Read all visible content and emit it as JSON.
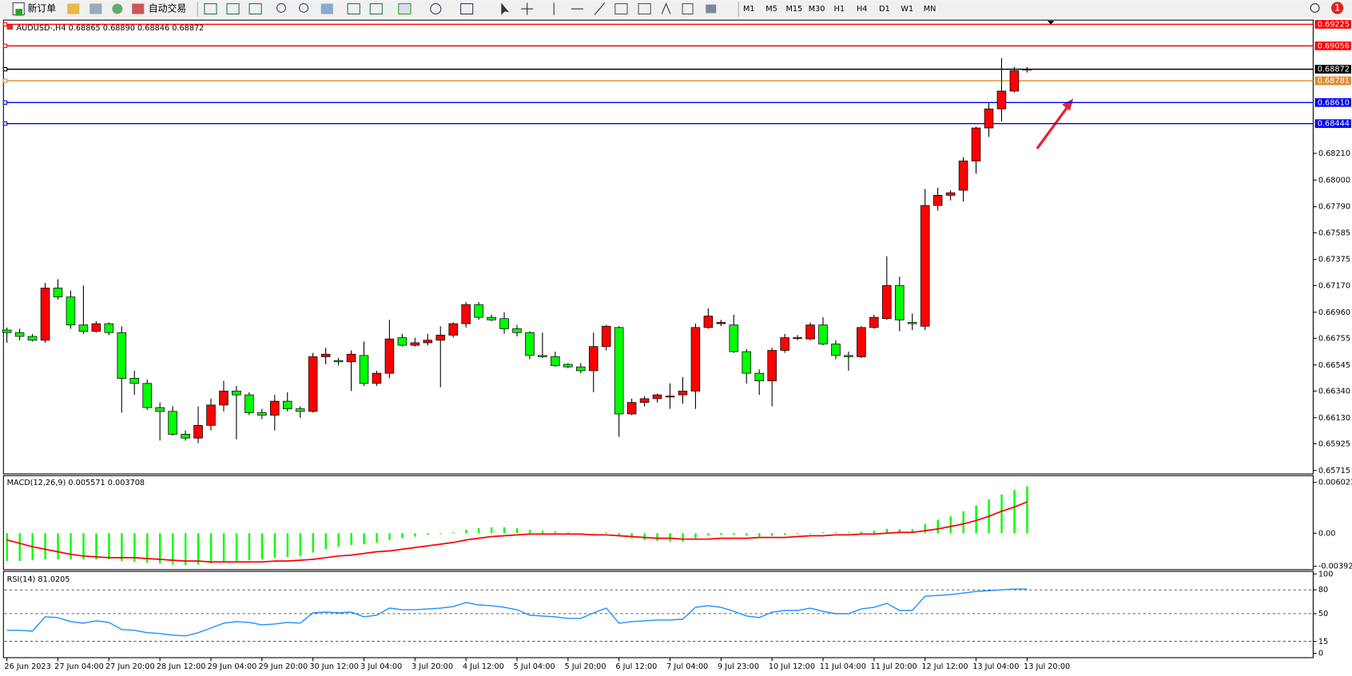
{
  "toolbar": {
    "new_order": "新订单",
    "auto_trading": "自动交易",
    "timeframes": [
      "M1",
      "M5",
      "M15",
      "M30",
      "H1",
      "H4",
      "D1",
      "W1",
      "MN"
    ],
    "alerts": "1"
  },
  "chart_data": [
    {
      "type": "candlestick",
      "title": "AUDUSD-,H4  0.68865 0.68890 0.68846 0.68872",
      "categories": [
        "26 Jun 2023",
        null,
        null,
        null,
        "27 Jun 04:00",
        null,
        null,
        null,
        "27 Jun 20:00",
        null,
        null,
        null,
        "28 Jun 12:00",
        null,
        null,
        null,
        "29 Jun 04:00",
        null,
        null,
        null,
        "29 Jun 20:00",
        null,
        null,
        null,
        "30 Jun 12:00",
        null,
        null,
        null,
        "3 Jul 04:00",
        null,
        null,
        null,
        "3 Jul 20:00",
        null,
        null,
        null,
        "4 Jul 12:00",
        null,
        null,
        null,
        "5 Jul 04:00",
        null,
        null,
        null,
        "5 Jul 20:00",
        null,
        null,
        null,
        "6 Jul 12:00",
        null,
        null,
        null,
        "7 Jul 04:00",
        null,
        null,
        null,
        "9 Jul 23:00",
        null,
        null,
        null,
        "10 Jul 12:00",
        null,
        null,
        null,
        "11 Jul 04:00",
        null,
        null,
        null,
        "11 Jul 20:00",
        null,
        null,
        null,
        "12 Jul 12:00",
        null,
        null,
        null,
        "13 Jul 04:00",
        null,
        null,
        null,
        "13 Jul 20:00"
      ],
      "open": [
        0.6682,
        0.668,
        0.6677,
        0.6674,
        0.6715,
        0.6708,
        0.6686,
        0.6681,
        0.6687,
        0.668,
        0.6644,
        0.664,
        0.6621,
        0.6618,
        0.66,
        0.6597,
        0.6607,
        0.6623,
        0.6634,
        0.6631,
        0.6617,
        0.6615,
        0.6626,
        0.662,
        0.6618,
        0.6661,
        0.6658,
        0.6657,
        0.6662,
        0.664,
        0.6648,
        0.6676,
        0.667,
        0.6672,
        0.6674,
        0.6678,
        0.6687,
        0.6702,
        0.6692,
        0.6691,
        0.6683,
        0.668,
        0.6662,
        0.6661,
        0.6655,
        0.6653,
        0.665,
        0.6669,
        0.6684,
        0.6616,
        0.6625,
        0.6628,
        0.663,
        0.6631,
        0.6634,
        0.6684,
        0.6687,
        0.6686,
        0.6665,
        0.6648,
        0.6642,
        0.6666,
        0.6676,
        0.6675,
        0.6686,
        0.6671,
        0.6662,
        0.6661,
        0.6684,
        0.6691,
        0.6717,
        0.6688,
        0.6685,
        0.678,
        0.6788,
        0.6792,
        0.6815,
        0.6841,
        0.6856,
        0.687,
        0.68865
      ],
      "high": [
        0.6684,
        0.6683,
        0.6679,
        0.6719,
        0.6722,
        0.6713,
        0.6717,
        0.6689,
        0.6688,
        0.6685,
        0.665,
        0.6643,
        0.6625,
        0.6622,
        0.6603,
        0.6622,
        0.6628,
        0.6642,
        0.6638,
        0.6633,
        0.662,
        0.6631,
        0.6633,
        0.6622,
        0.6664,
        0.6668,
        0.666,
        0.6666,
        0.6673,
        0.665,
        0.669,
        0.6679,
        0.6676,
        0.6679,
        0.6685,
        0.6688,
        0.6704,
        0.6704,
        0.6694,
        0.6696,
        0.6686,
        0.6681,
        0.668,
        0.6665,
        0.6656,
        0.6656,
        0.668,
        0.6686,
        0.6685,
        0.6628,
        0.663,
        0.6632,
        0.664,
        0.6645,
        0.6687,
        0.6699,
        0.669,
        0.6694,
        0.6667,
        0.6651,
        0.6668,
        0.6679,
        0.6678,
        0.6688,
        0.6692,
        0.6674,
        0.6665,
        0.6685,
        0.6694,
        0.674,
        0.6724,
        0.6695,
        0.6793,
        0.6794,
        0.6792,
        0.6818,
        0.6842,
        0.6861,
        0.6896,
        0.6889,
        0.6889
      ],
      "low": [
        0.6672,
        0.6674,
        0.6673,
        0.6672,
        0.6706,
        0.6683,
        0.6679,
        0.668,
        0.6678,
        0.6617,
        0.6631,
        0.6619,
        0.6595,
        0.6599,
        0.6595,
        0.6593,
        0.6603,
        0.6618,
        0.6596,
        0.6615,
        0.6612,
        0.6603,
        0.6618,
        0.6613,
        0.6617,
        0.6655,
        0.6654,
        0.6634,
        0.6638,
        0.6638,
        0.6644,
        0.6669,
        0.6669,
        0.667,
        0.6637,
        0.6676,
        0.6684,
        0.669,
        0.6689,
        0.6679,
        0.6677,
        0.6659,
        0.666,
        0.6653,
        0.6652,
        0.6648,
        0.6633,
        0.6666,
        0.6598,
        0.6615,
        0.6622,
        0.6625,
        0.662,
        0.6624,
        0.662,
        0.6683,
        0.6685,
        0.6664,
        0.664,
        0.6631,
        0.6622,
        0.6664,
        0.6674,
        0.6674,
        0.667,
        0.6659,
        0.665,
        0.666,
        0.6683,
        0.669,
        0.6681,
        0.6682,
        0.6682,
        0.6776,
        0.6784,
        0.6783,
        0.6805,
        0.6834,
        0.6846,
        0.6869,
        0.68846
      ],
      "close": [
        0.668,
        0.6677,
        0.6674,
        0.6715,
        0.6708,
        0.6686,
        0.6681,
        0.6687,
        0.668,
        0.6644,
        0.664,
        0.6621,
        0.6618,
        0.66,
        0.6597,
        0.6607,
        0.6623,
        0.6634,
        0.6631,
        0.6617,
        0.6615,
        0.6626,
        0.662,
        0.6618,
        0.6661,
        0.6663,
        0.6657,
        0.6663,
        0.664,
        0.6648,
        0.6675,
        0.667,
        0.6672,
        0.6674,
        0.6678,
        0.6687,
        0.6702,
        0.6692,
        0.669,
        0.6683,
        0.668,
        0.6662,
        0.6661,
        0.6654,
        0.6653,
        0.665,
        0.6669,
        0.6685,
        0.6616,
        0.6625,
        0.6628,
        0.6631,
        0.663,
        0.6634,
        0.6684,
        0.6693,
        0.6688,
        0.6665,
        0.6648,
        0.6642,
        0.6666,
        0.6676,
        0.6676,
        0.6686,
        0.6671,
        0.6662,
        0.6661,
        0.6684,
        0.6692,
        0.6717,
        0.669,
        0.6687,
        0.678,
        0.6788,
        0.679,
        0.6815,
        0.6841,
        0.6856,
        0.687,
        0.6886,
        0.68872
      ],
      "up_color": "#ff0000",
      "down_color": "#00ff00",
      "ylim": [
        0.65695,
        0.69252
      ],
      "yticks": [
        {
          "value": 0.6821,
          "label": "0.68210"
        },
        {
          "value": 0.68,
          "label": "0.68000"
        },
        {
          "value": 0.6779,
          "label": "0.67790"
        },
        0.67585,
        0.67375,
        {
          "value": 0.6717,
          "label": "0.67170"
        },
        {
          "value": 0.6696,
          "label": "0.66960"
        },
        0.66755,
        0.66545,
        {
          "value": 0.6634,
          "label": "0.66340"
        },
        {
          "value": 0.6613,
          "label": "0.66130"
        },
        0.65925,
        0.65715
      ],
      "hlines": [
        {
          "value": 0.69225,
          "label": "0.69225",
          "color": "#ff0000"
        },
        {
          "value": 0.69056,
          "label": "0.69056",
          "color": "#ff0000"
        },
        {
          "value": 0.68872,
          "label": "0.68872",
          "color": "#000000"
        },
        {
          "value": 0.68781,
          "label": "0.68781",
          "color": "#e08a2c"
        },
        {
          "value": 0.6861,
          "label": "0.68610",
          "color": "#0000ff"
        },
        {
          "value": 0.68444,
          "label": "0.68444",
          "color": "#0000ff"
        }
      ]
    },
    {
      "type": "macd",
      "title": "MACD(12,26,9) 0.005571 0.003708",
      "ylim": [
        -0.00432,
        0.00662
      ],
      "yticks": [
        0.006023,
        {
          "value": 0,
          "label": "0.00"
        },
        -0.003921
      ],
      "series": [
        {
          "type": "bar",
          "color": "#00ff00",
          "values": [
            -0.0033,
            -0.0033,
            -0.0032,
            -0.0031,
            -0.0031,
            -0.0031,
            -0.0031,
            -0.0031,
            -0.0031,
            -0.0033,
            -0.0034,
            -0.0035,
            -0.0036,
            -0.0037,
            -0.0038,
            -0.0037,
            -0.0036,
            -0.0034,
            -0.0033,
            -0.0032,
            -0.0031,
            -0.0029,
            -0.0028,
            -0.0027,
            -0.0023,
            -0.0019,
            -0.0016,
            -0.0014,
            -0.0013,
            -0.0011,
            -0.0008,
            -0.0006,
            -0.0004,
            -0.0002,
            -0.0001,
            0.0001,
            0.0004,
            0.0006,
            0.0007,
            0.0007,
            0.0006,
            0.0004,
            0.0003,
            0.0002,
            0.0001,
            0.0,
            0.0,
            0.0001,
            -0.0003,
            -0.0006,
            -0.0008,
            -0.0009,
            -0.001,
            -0.001,
            -0.0006,
            -0.0003,
            -0.0002,
            -0.0002,
            -0.0003,
            -0.0004,
            -0.0003,
            -0.0002,
            -0.0001,
            0.0,
            0.0001,
            0.0001,
            0.0001,
            0.0002,
            0.0003,
            0.0005,
            0.0005,
            0.0005,
            0.0011,
            0.0016,
            0.002,
            0.0026,
            0.0033,
            0.004,
            0.0046,
            0.0051,
            0.005571
          ]
        },
        {
          "type": "line",
          "color": "#ff0000",
          "values": [
            -0.0008,
            -0.0012,
            -0.0016,
            -0.0019,
            -0.0022,
            -0.0025,
            -0.0027,
            -0.0028,
            -0.0029,
            -0.0029,
            -0.0029,
            -0.003,
            -0.0031,
            -0.0032,
            -0.0033,
            -0.0033,
            -0.0034,
            -0.0034,
            -0.0034,
            -0.0034,
            -0.0034,
            -0.0033,
            -0.0033,
            -0.0032,
            -0.0031,
            -0.0029,
            -0.0027,
            -0.0026,
            -0.0024,
            -0.0022,
            -0.0021,
            -0.0019,
            -0.0017,
            -0.0015,
            -0.0013,
            -0.0011,
            -0.0008,
            -0.0006,
            -0.0004,
            -0.0003,
            -0.0002,
            -0.0001,
            -0.0001,
            -0.0001,
            -0.0001,
            -0.0001,
            -0.0002,
            -0.0002,
            -0.0003,
            -0.0004,
            -0.0005,
            -0.0006,
            -0.0006,
            -0.0007,
            -0.0007,
            -0.0007,
            -0.0006,
            -0.0006,
            -0.0006,
            -0.0005,
            -0.0005,
            -0.0005,
            -0.0004,
            -0.0003,
            -0.0003,
            -0.0002,
            -0.0002,
            -0.0001,
            -0.0001,
            0.0,
            0.0001,
            0.0001,
            0.0003,
            0.0005,
            0.0008,
            0.0011,
            0.0015,
            0.002,
            0.0026,
            0.0031,
            0.003708
          ]
        }
      ]
    },
    {
      "type": "line",
      "title": "RSI(14) 81.0205",
      "color": "#1e90ff",
      "ylim": [
        0,
        100
      ],
      "yticks": [
        100,
        80,
        50,
        15,
        0
      ],
      "values": [
        29,
        29,
        28,
        46,
        45,
        40,
        38,
        41,
        39,
        30,
        29,
        26,
        25,
        23,
        22,
        26,
        32,
        38,
        40,
        39,
        36,
        37,
        39,
        38,
        51,
        52,
        51,
        52,
        46,
        48,
        57,
        55,
        55,
        56,
        57,
        59,
        64,
        61,
        60,
        58,
        55,
        48,
        47,
        46,
        44,
        44,
        51,
        57,
        38,
        40,
        41,
        42,
        42,
        43,
        58,
        60,
        58,
        53,
        47,
        45,
        52,
        54,
        54,
        57,
        53,
        50,
        50,
        56,
        58,
        63,
        54,
        54,
        72,
        73,
        74,
        76,
        78,
        79,
        80,
        81,
        81.0205
      ]
    }
  ]
}
